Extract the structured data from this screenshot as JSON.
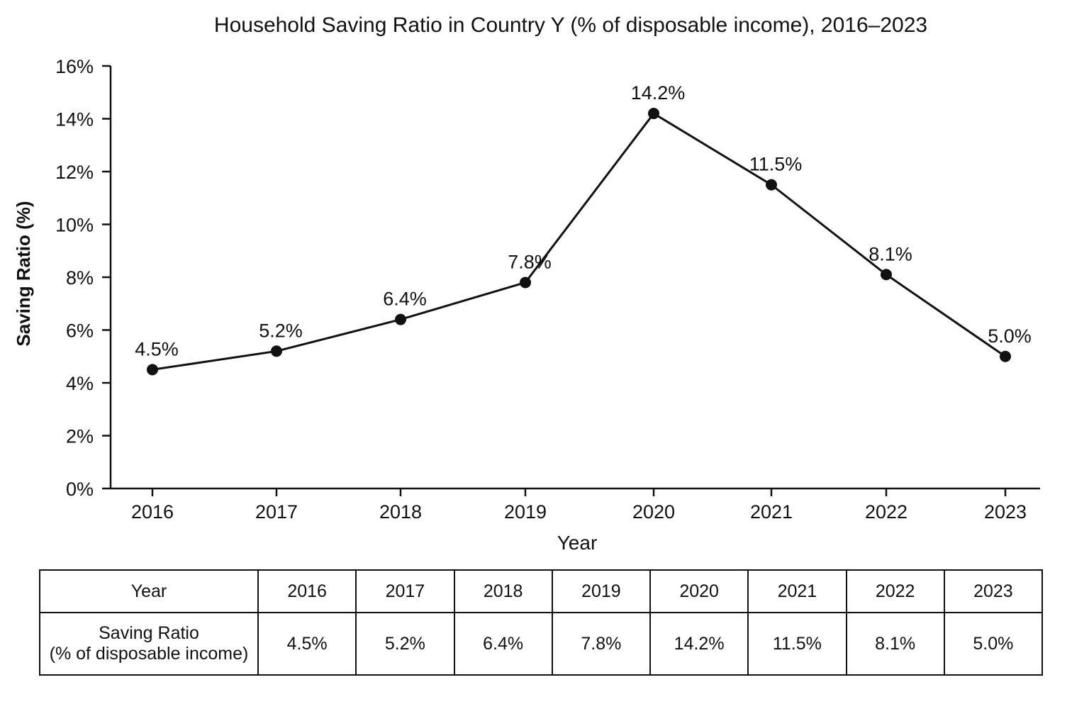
{
  "chart_data": {
    "type": "line",
    "title": "Household Saving Ratio in Country Y (% of disposable income), 2016–2023",
    "xlabel": "Year",
    "ylabel": "Saving Ratio (%)",
    "categories": [
      "2016",
      "2017",
      "2018",
      "2019",
      "2020",
      "2021",
      "2022",
      "2023"
    ],
    "values": [
      4.5,
      5.2,
      6.4,
      7.8,
      14.2,
      11.5,
      8.1,
      5.0
    ],
    "data_labels": [
      "4.5%",
      "5.2%",
      "6.4%",
      "7.8%",
      "14.2%",
      "11.5%",
      "8.1%",
      "5.0%"
    ],
    "ylim": [
      0,
      16
    ],
    "y_ticks": [
      0,
      2,
      4,
      6,
      8,
      10,
      12,
      14,
      16
    ],
    "y_tick_labels": [
      "0%",
      "2%",
      "4%",
      "6%",
      "8%",
      "10%",
      "12%",
      "14%",
      "16%"
    ],
    "grid": false,
    "legend": "none",
    "line_color": "#111111"
  },
  "table": {
    "header_label": "Year",
    "row_label": "Saving Ratio\n(% of disposable income)",
    "years": [
      "2016",
      "2017",
      "2018",
      "2019",
      "2020",
      "2021",
      "2022",
      "2023"
    ],
    "values": [
      "4.5%",
      "5.2%",
      "6.4%",
      "7.8%",
      "14.2%",
      "11.5%",
      "8.1%",
      "5.0%"
    ]
  }
}
